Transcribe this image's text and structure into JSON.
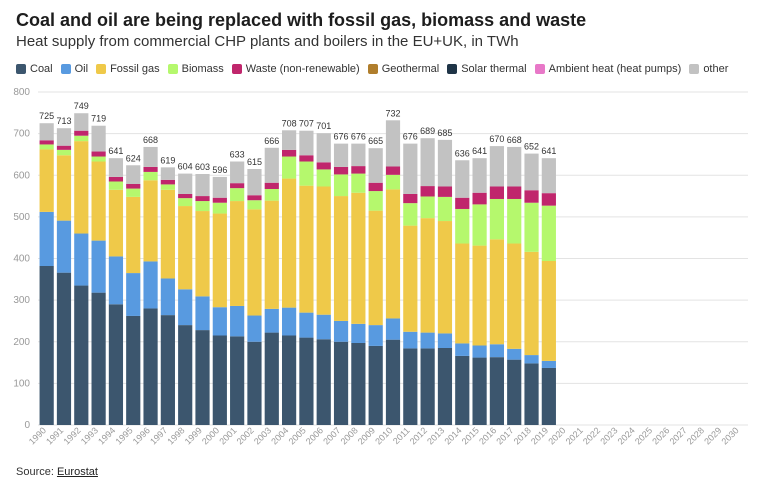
{
  "header": {
    "title": "Coal and oil are being replaced with fossil gas, biomass and waste",
    "subtitle": "Heat supply from commercial CHP plants and boilers in the EU+UK, in TWh"
  },
  "source": {
    "label": "Source: ",
    "link_text": "Eurostat"
  },
  "chart_data": {
    "type": "bar",
    "stacked": true,
    "ylim": [
      0,
      800
    ],
    "yticks": [
      0,
      100,
      200,
      300,
      400,
      500,
      600,
      700,
      800
    ],
    "grid": true,
    "legend_position": "top",
    "x_axis_years": [
      "1990",
      "1991",
      "1992",
      "1993",
      "1994",
      "1995",
      "1996",
      "1997",
      "1998",
      "1999",
      "2000",
      "2001",
      "2002",
      "2003",
      "2004",
      "2005",
      "2006",
      "2007",
      "2008",
      "2009",
      "2010",
      "2011",
      "2012",
      "2013",
      "2014",
      "2015",
      "2016",
      "2017",
      "2018",
      "2019",
      "2020",
      "2021",
      "2022",
      "2023",
      "2024",
      "2025",
      "2026",
      "2027",
      "2028",
      "2029",
      "2030"
    ],
    "categories": [
      "1990",
      "1991",
      "1992",
      "1993",
      "1994",
      "1995",
      "1996",
      "1997",
      "1998",
      "1999",
      "2000",
      "2001",
      "2002",
      "2003",
      "2004",
      "2005",
      "2006",
      "2007",
      "2008",
      "2009",
      "2010",
      "2011",
      "2012",
      "2013",
      "2014",
      "2015",
      "2016",
      "2017",
      "2018",
      "2019"
    ],
    "totals": [
      725,
      713,
      749,
      719,
      641,
      624,
      668,
      619,
      604,
      603,
      596,
      633,
      615,
      666,
      708,
      707,
      701,
      676,
      676,
      665,
      732,
      676,
      689,
      685,
      636,
      641,
      670,
      668,
      652,
      641
    ],
    "series": [
      {
        "name": "Coal",
        "color": "#3c566e",
        "values": [
          382,
          366,
          335,
          318,
          290,
          262,
          280,
          264,
          240,
          228,
          215,
          213,
          200,
          222,
          215,
          210,
          206,
          200,
          197,
          190,
          205,
          184,
          184,
          185,
          166,
          162,
          163,
          157,
          148,
          137
        ]
      },
      {
        "name": "Oil",
        "color": "#589ae0",
        "values": [
          130,
          125,
          125,
          125,
          115,
          103,
          113,
          88,
          86,
          81,
          68,
          73,
          63,
          57,
          67,
          60,
          59,
          50,
          46,
          50,
          51,
          40,
          38,
          35,
          30,
          29,
          31,
          26,
          20,
          17
        ]
      },
      {
        "name": "Fossil gas",
        "color": "#efc949",
        "values": [
          150,
          157,
          222,
          190,
          160,
          183,
          195,
          213,
          200,
          205,
          225,
          252,
          255,
          260,
          310,
          305,
          308,
          300,
          315,
          275,
          310,
          255,
          275,
          270,
          240,
          240,
          252,
          253,
          248,
          240
        ]
      },
      {
        "name": "Biomass",
        "color": "#b5f86d",
        "values": [
          12,
          13,
          13,
          12,
          20,
          20,
          20,
          13,
          19,
          24,
          26,
          31,
          22,
          28,
          53,
          58,
          41,
          52,
          46,
          47,
          35,
          54,
          52,
          58,
          83,
          99,
          97,
          107,
          118,
          133
        ]
      },
      {
        "name": "Waste (non-renewable)",
        "color": "#c0266c",
        "values": [
          10,
          10,
          12,
          12,
          11,
          11,
          12,
          11,
          10,
          12,
          12,
          12,
          12,
          15,
          16,
          15,
          17,
          18,
          18,
          20,
          20,
          22,
          25,
          25,
          27,
          28,
          30,
          30,
          30,
          30
        ]
      },
      {
        "name": "Geothermal",
        "color": "#b07e2c",
        "values": [
          0,
          0,
          0,
          0,
          0,
          0,
          0,
          0,
          0,
          0,
          0,
          0,
          0,
          0,
          0,
          0,
          0,
          0,
          0,
          0,
          0,
          0,
          0,
          0,
          0,
          0,
          0,
          0,
          0,
          0
        ]
      },
      {
        "name": "Solar thermal",
        "color": "#1f3447",
        "values": [
          0,
          0,
          0,
          0,
          0,
          0,
          0,
          0,
          0,
          0,
          0,
          0,
          0,
          0,
          0,
          0,
          0,
          0,
          0,
          0,
          0,
          0,
          0,
          0,
          0,
          0,
          0,
          0,
          0,
          0
        ]
      },
      {
        "name": "Ambient heat (heat pumps)",
        "color": "#e878c8",
        "values": [
          0,
          0,
          0,
          0,
          0,
          0,
          0,
          0,
          0,
          0,
          0,
          0,
          0,
          0,
          0,
          0,
          0,
          0,
          0,
          0,
          0,
          0,
          0,
          0,
          0,
          0,
          0,
          0,
          0,
          0
        ]
      },
      {
        "name": "other",
        "color": "#c2c2c2",
        "values": [
          41,
          42,
          42,
          62,
          45,
          45,
          48,
          30,
          49,
          53,
          50,
          52,
          63,
          84,
          47,
          59,
          70,
          56,
          54,
          83,
          111,
          121,
          115,
          112,
          90,
          83,
          97,
          95,
          88,
          84
        ]
      }
    ]
  }
}
